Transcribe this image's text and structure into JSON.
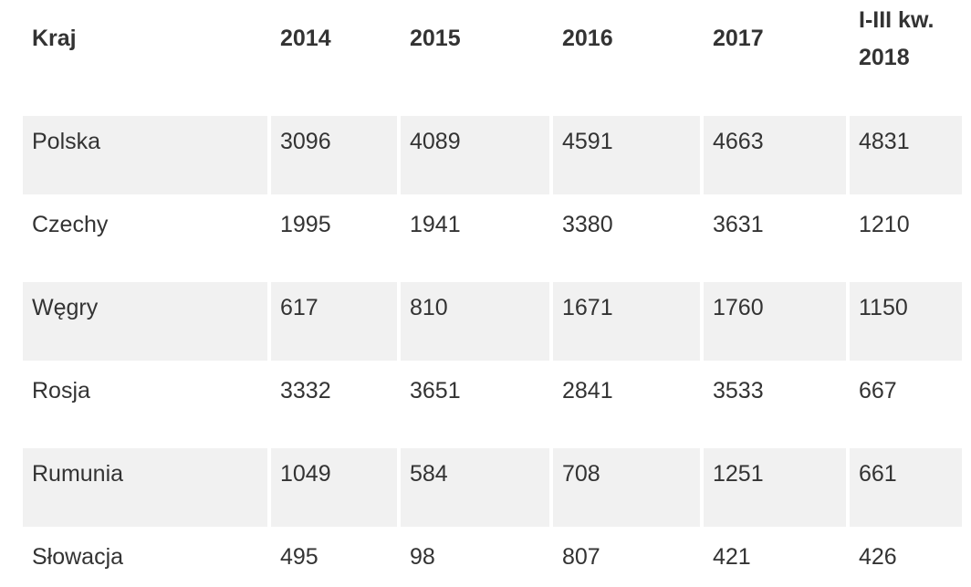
{
  "table": {
    "header": [
      "Kraj",
      "2014",
      "2015",
      "2016",
      "2017",
      "I-III kw. 2018"
    ],
    "rows": [
      [
        "Polska",
        3096,
        4089,
        4591,
        4663,
        4831
      ],
      [
        "Czechy",
        1995,
        1941,
        3380,
        3631,
        1210
      ],
      [
        "Węgry",
        617,
        810,
        1671,
        1760,
        1150
      ],
      [
        "Rosja",
        3332,
        3651,
        2841,
        3533,
        667
      ],
      [
        "Rumunia",
        1049,
        584,
        708,
        1251,
        661
      ],
      [
        "Słowacja",
        495,
        98,
        807,
        421,
        426
      ]
    ]
  }
}
